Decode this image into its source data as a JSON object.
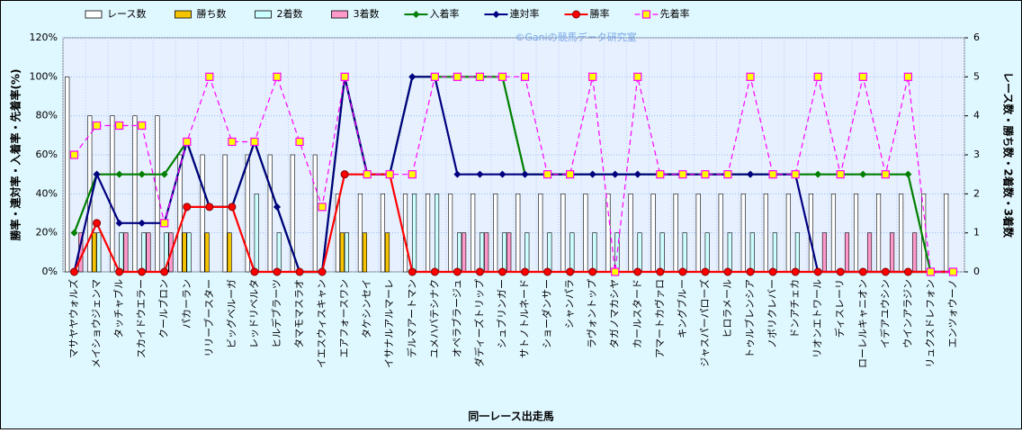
{
  "chart_data": {
    "type": "bar",
    "watermark": "©Ganiの競馬データ研究室",
    "x_label": "同一レース出走馬",
    "y_label": "勝率・連対率・入着率・先着率(%)",
    "y2_label": "レース数・勝ち数・2着数・3着数",
    "categories": [
      "マサヤヤウォルズ",
      "メイショウジェンマ",
      "タッチャブル",
      "スカイドウエラー",
      "クールブロン",
      "パカーラン",
      "リリーブースター",
      "ビッグベルーガ",
      "レッドリベルタ",
      "ヒルデブラーツ",
      "タマモマスラオ",
      "イエスウィスキャン",
      "エアフォースワン",
      "タケシンセイ",
      "イサナルアルマーレ",
      "デルマアートマン",
      "ユメハバテシナク",
      "オペラブラージュ",
      "ダディーズトリップ",
      "シュブリンガー",
      "サトノトルネード",
      "ショーダンサー",
      "シャンパラ",
      "ラヴォントップ",
      "タガノマカシヤ",
      "カールスタード",
      "アマートカヴァロ",
      "キングブルー",
      "ジャスパーパローズ",
      "ヒロラメール",
      "トゥルブレンシア",
      "ノボリクレバー",
      "ドンアチェカ",
      "リオンエトワール",
      "ディスレーリ",
      "ローレルキャニオン",
      "イデアユウシン",
      "ウインアラジン",
      "リュクスドレフォン",
      "エンツォウーノ"
    ],
    "ylim": [
      0,
      120
    ],
    "yticks": [
      {
        "value": 0,
        "label": "0%"
      },
      {
        "value": 20,
        "label": "20%"
      },
      {
        "value": 40,
        "label": "40%"
      },
      {
        "value": 60,
        "label": "60%"
      },
      {
        "value": 80,
        "label": "80%"
      },
      {
        "value": 100,
        "label": "100%"
      },
      {
        "value": 120,
        "label": "120%"
      }
    ],
    "y2lim": [
      0,
      6
    ],
    "y2ticks": [
      0,
      1,
      2,
      3,
      4,
      5,
      6
    ],
    "grid": true,
    "series": [
      {
        "name": "レース数",
        "type": "bar",
        "axis": "y2",
        "color": "#ffffff",
        "values": [
          5,
          4,
          4,
          4,
          4,
          3,
          3,
          3,
          3,
          3,
          3,
          3,
          2,
          2,
          2,
          2,
          2,
          2,
          2,
          2,
          2,
          2,
          2,
          2,
          2,
          2,
          2,
          2,
          2,
          2,
          2,
          2,
          2,
          2,
          2,
          2,
          2,
          2,
          2,
          2
        ]
      },
      {
        "name": "勝ち数",
        "type": "bar",
        "axis": "y2",
        "color": "#f5c400",
        "values": [
          0,
          1,
          0,
          0,
          0,
          1,
          1,
          1,
          0,
          0,
          0,
          0,
          1,
          1,
          1,
          0,
          0,
          0,
          0,
          0,
          0,
          0,
          0,
          0,
          0,
          0,
          0,
          0,
          0,
          0,
          0,
          0,
          0,
          0,
          0,
          0,
          0,
          0,
          0,
          0
        ]
      },
      {
        "name": "2着数",
        "type": "bar",
        "axis": "y2",
        "color": "#ccffff",
        "values": [
          0,
          1,
          1,
          1,
          1,
          1,
          0,
          0,
          2,
          1,
          0,
          0,
          1,
          0,
          0,
          2,
          2,
          1,
          1,
          1,
          1,
          1,
          1,
          1,
          1,
          1,
          1,
          1,
          1,
          1,
          1,
          1,
          1,
          0,
          0,
          0,
          0,
          0,
          0,
          0
        ]
      },
      {
        "name": "3着数",
        "type": "bar",
        "axis": "y2",
        "color": "#ff99cc",
        "values": [
          1,
          0,
          1,
          1,
          1,
          0,
          0,
          0,
          0,
          0,
          0,
          0,
          0,
          0,
          0,
          0,
          0,
          1,
          1,
          1,
          0,
          0,
          0,
          0,
          0,
          0,
          0,
          0,
          0,
          0,
          0,
          0,
          0,
          1,
          1,
          1,
          1,
          1,
          0,
          0
        ]
      },
      {
        "name": "入着率",
        "type": "line",
        "marker": "diamond",
        "color": "#008000",
        "values": [
          20,
          50,
          50,
          50,
          50,
          66.7,
          33.3,
          33.3,
          66.7,
          33.3,
          0,
          0,
          100,
          50,
          50,
          100,
          100,
          100,
          100,
          100,
          50,
          50,
          50,
          50,
          50,
          50,
          50,
          50,
          50,
          50,
          50,
          50,
          50,
          50,
          50,
          50,
          50,
          50,
          0,
          0
        ]
      },
      {
        "name": "連対率",
        "type": "line",
        "marker": "diamond",
        "color": "#000080",
        "values": [
          0,
          50,
          25,
          25,
          25,
          66.7,
          33.3,
          33.3,
          66.7,
          33.3,
          0,
          0,
          100,
          50,
          50,
          100,
          100,
          50,
          50,
          50,
          50,
          50,
          50,
          50,
          50,
          50,
          50,
          50,
          50,
          50,
          50,
          50,
          50,
          0,
          0,
          0,
          0,
          0,
          0,
          0
        ]
      },
      {
        "name": "勝率",
        "type": "line",
        "marker": "circle",
        "color": "#ff0000",
        "values": [
          0,
          25,
          0,
          0,
          0,
          33.3,
          33.3,
          33.3,
          0,
          0,
          0,
          0,
          50,
          50,
          50,
          0,
          0,
          0,
          0,
          0,
          0,
          0,
          0,
          0,
          0,
          0,
          0,
          0,
          0,
          0,
          0,
          0,
          0,
          0,
          0,
          0,
          0,
          0,
          0,
          0
        ]
      },
      {
        "name": "先着率",
        "type": "line",
        "marker": "square",
        "dash": true,
        "color": "#ff00ff",
        "values": [
          60,
          75,
          75,
          75,
          25,
          66.7,
          100,
          66.7,
          66.7,
          100,
          66.7,
          33.3,
          100,
          50,
          50,
          50,
          100,
          100,
          100,
          100,
          100,
          50,
          50,
          100,
          0,
          100,
          50,
          50,
          50,
          50,
          100,
          50,
          50,
          100,
          50,
          100,
          50,
          100,
          0,
          0
        ]
      }
    ]
  }
}
